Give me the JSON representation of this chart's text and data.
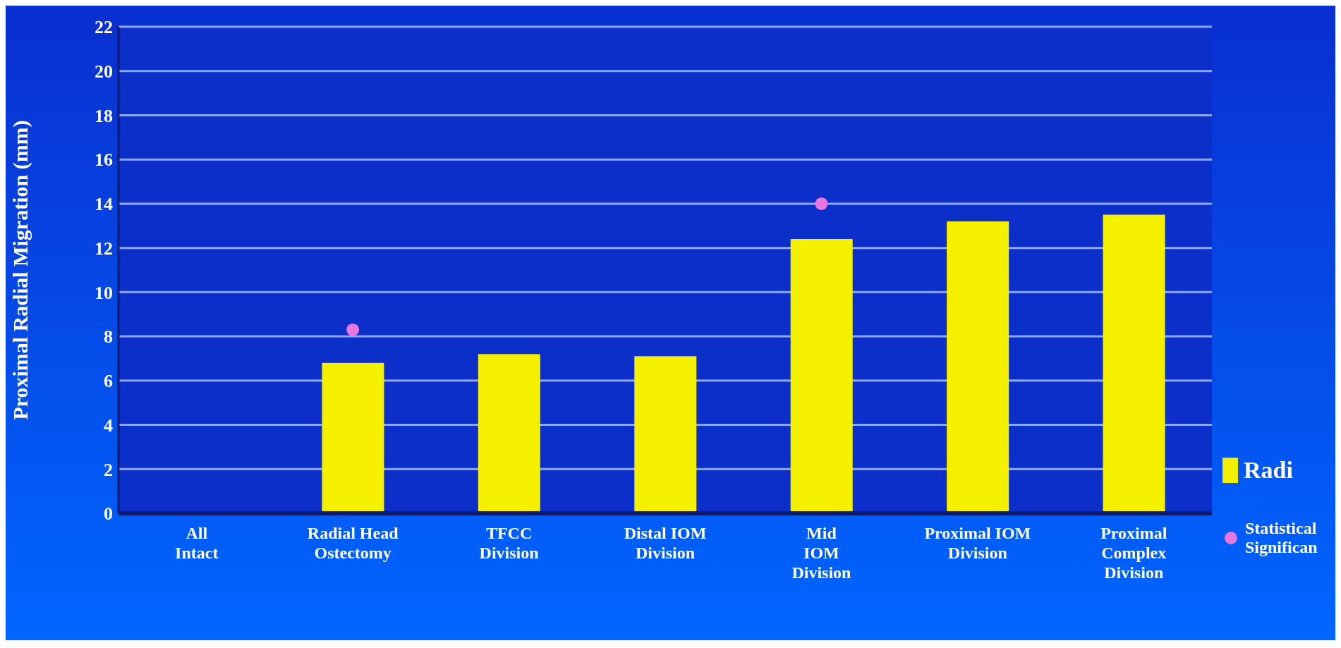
{
  "chart_data": {
    "type": "bar",
    "ylabel": "Proximal Radial Migration (mm)",
    "categories": [
      "All Intact",
      "Radial Head Ostectomy",
      "TFCC Division",
      "Distal IOM Division",
      "Mid IOM Division",
      "Proximal IOM Division",
      "Proximal Complex Division"
    ],
    "series": [
      {
        "name": "Radi",
        "color": "#f5f000",
        "values": [
          0,
          6.8,
          7.2,
          7.1,
          12.4,
          13.2,
          13.5
        ]
      },
      {
        "name": "Statistical Significan",
        "type": "scatter",
        "color": "#e878e0",
        "marker": "circle",
        "values": [
          null,
          8.3,
          null,
          null,
          14,
          null,
          null
        ]
      }
    ],
    "ylim": [
      0,
      22
    ],
    "yticks": [
      0,
      2,
      4,
      6,
      8,
      10,
      12,
      14,
      16,
      18,
      20,
      22
    ],
    "grid": "y",
    "legend": "right"
  }
}
